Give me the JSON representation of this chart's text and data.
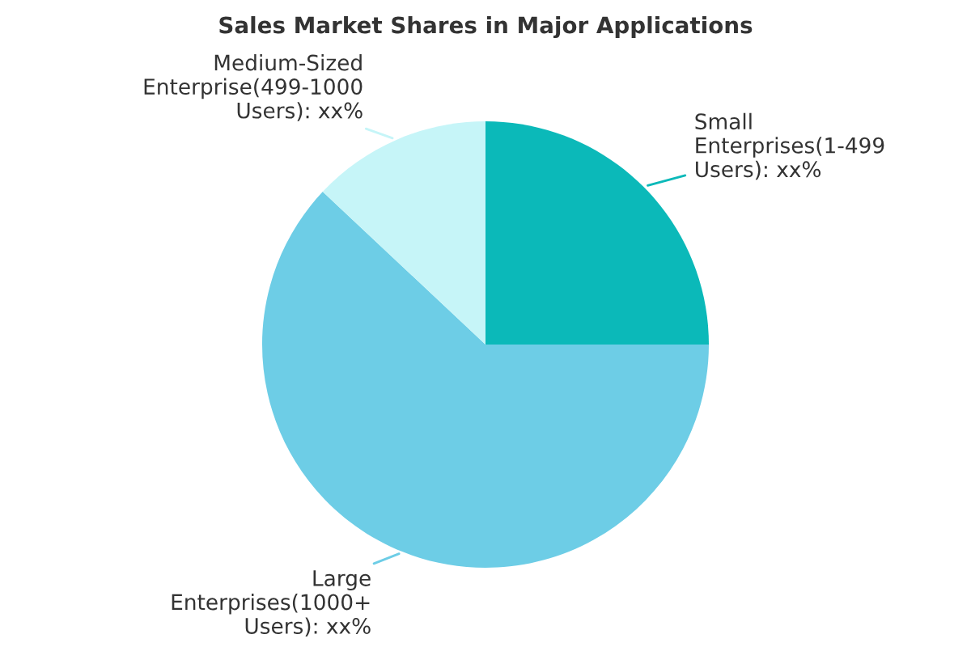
{
  "chart_data": {
    "type": "pie",
    "title": "Sales Market Shares in Major Applications",
    "categories": [
      "Small Enterprises(1-499 Users)",
      "Large Enterprises(1000+ Users)",
      "Medium-Sized Enterprise(499-1000 Users)"
    ],
    "values": [
      25,
      62,
      13
    ],
    "colors": [
      "#0bb9b9",
      "#6dcde6",
      "#c6f5f8"
    ],
    "value_labels": [
      "xx%",
      "xx%",
      "xx%"
    ],
    "legend": false
  }
}
